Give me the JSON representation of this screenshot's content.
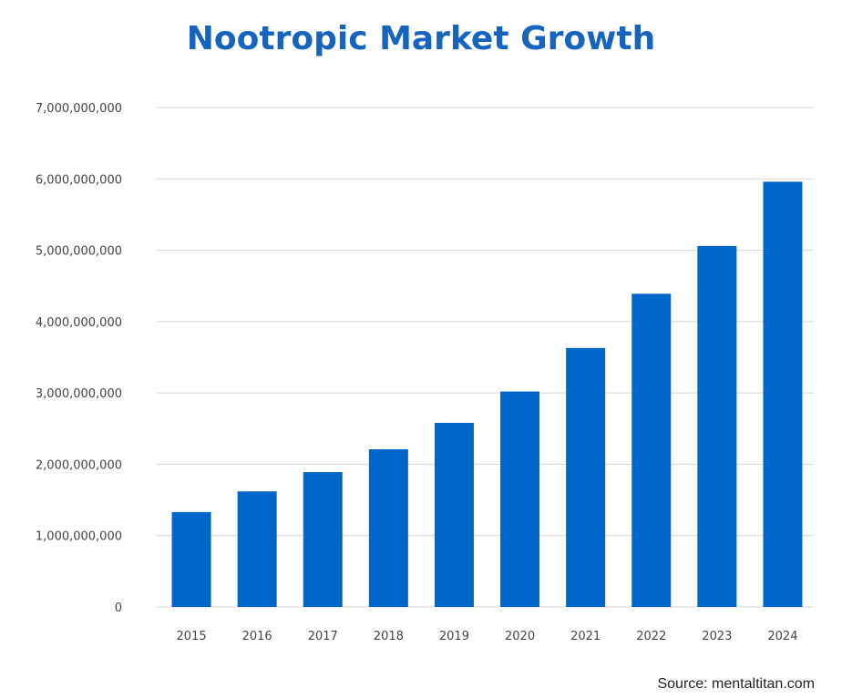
{
  "chart_data": {
    "type": "bar",
    "title": "Nootropic Market Growth",
    "xlabel": "",
    "ylabel": "",
    "categories": [
      "2015",
      "2016",
      "2017",
      "2018",
      "2019",
      "2020",
      "2021",
      "2022",
      "2023",
      "2024"
    ],
    "values": [
      1330000000,
      1620000000,
      1890000000,
      2210000000,
      2580000000,
      3020000000,
      3630000000,
      4390000000,
      5060000000,
      5960000000
    ],
    "ylim": [
      0,
      7000000000
    ],
    "yticks": [
      0,
      1000000000,
      2000000000,
      3000000000,
      4000000000,
      5000000000,
      6000000000,
      7000000000
    ],
    "ytick_labels": [
      "0",
      "1,000,000,000",
      "2,000,000,000",
      "3,000,000,000",
      "4,000,000,000",
      "5,000,000,000",
      "6,000,000,000",
      "7,000,000,000"
    ],
    "grid": true,
    "legend": "none",
    "bar_color": "#0066cc",
    "title_color": "#1565c0"
  },
  "source": "Source: mentaltitan.com"
}
